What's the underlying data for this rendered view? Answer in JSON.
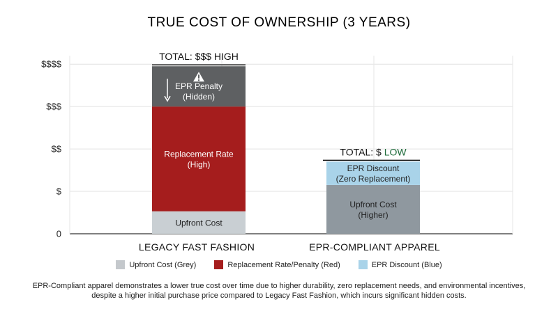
{
  "chart_data": {
    "type": "bar",
    "stacked": true,
    "title": "TRUE COST OF OWNERSHIP (3 YEARS)",
    "categories": [
      "LEGACY FAST FASHION",
      "EPR-COMPLIANT APPAREL"
    ],
    "y_ticks": [
      {
        "value": 0,
        "label": "0"
      },
      {
        "value": 1,
        "label": "$"
      },
      {
        "value": 2,
        "label": "$$"
      },
      {
        "value": 3,
        "label": "$$$"
      },
      {
        "value": 4,
        "label": "$$$$"
      }
    ],
    "ylim": [
      0,
      4.2
    ],
    "grid": true,
    "segments": [
      [
        {
          "name": "Upfront Cost",
          "lines": [
            "Upfront Cost"
          ],
          "start": 0,
          "end": 0.53,
          "color": "#c9cfd3",
          "text_color": "#222222"
        },
        {
          "name": "Replacement Rate",
          "lines": [
            "Replacement Rate",
            "(High)"
          ],
          "start": 0.53,
          "end": 3.0,
          "color": "#a51d1d",
          "text_color": "#ffffff"
        },
        {
          "name": "EPR Penalty",
          "lines": [
            "EPR Penalty",
            "(Hidden)"
          ],
          "start": 3.0,
          "end": 3.95,
          "color": "#5e6062",
          "text_color": "#ffffff",
          "icons": [
            "warning-icon",
            "down-arrow-icon"
          ]
        }
      ],
      [
        {
          "name": "Upfront Cost",
          "lines": [
            "Upfront Cost",
            "(Higher)"
          ],
          "start": 0,
          "end": 1.15,
          "color": "#8f989f",
          "text_color": "#222222"
        },
        {
          "name": "EPR Discount",
          "lines": [
            "EPR Discount",
            "(Zero Replacement)"
          ],
          "start": 1.15,
          "end": 1.7,
          "color": "#a9d3e9",
          "text_color": "#222222"
        }
      ]
    ],
    "totals": [
      {
        "prefix": "TOTAL: $$$ ",
        "highlight": "HIGH",
        "highlight_color": "#111111"
      },
      {
        "prefix": "TOTAL: $ ",
        "highlight": "LOW",
        "highlight_color": "#1e6b3a"
      }
    ],
    "legend_position": "bottom"
  },
  "legend": [
    {
      "label": "Upfront Cost (Grey)",
      "color": "#c4c8cc"
    },
    {
      "label": "Replacement Rate/Penalty (Red)",
      "color": "#a51d1d"
    },
    {
      "label": "EPR Discount (Blue)",
      "color": "#a9d3e9"
    }
  ],
  "caption": "EPR-Compliant apparel demonstrates a lower true cost over time due to higher durability, zero replacement needs, and environmental incentives, despite a higher initial purchase price compared to Legacy Fast Fashion, which incurs significant hidden costs."
}
